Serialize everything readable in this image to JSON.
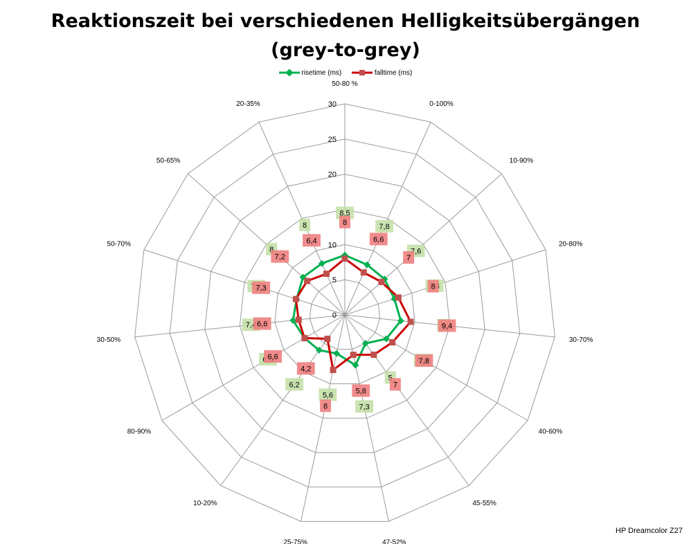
{
  "chart_data": {
    "type": "radar",
    "title_lines": [
      "Reaktionszeit bei verschiedenen Helligkeitsübergängen",
      "(grey-to-grey)"
    ],
    "categories": [
      "50-80 %",
      "0-100%",
      "10-90%",
      "20-80%",
      "30-70%",
      "40-60%",
      "45-55%",
      "47-52%",
      "25-75%",
      "10-20%",
      "80-90%",
      "30-50%",
      "50-70%",
      "50-65%",
      "20-35%"
    ],
    "rlim": [
      0,
      30
    ],
    "ticks": [
      "0",
      "5",
      "10",
      "20",
      "25",
      "30"
    ],
    "tick_values": [
      0,
      5,
      10,
      20,
      25,
      30
    ],
    "grid": true,
    "legend_position": "top",
    "series": [
      {
        "name": "risetime (ms)",
        "color": "#00b050",
        "label_bg": "#c4e0a8",
        "values": [
          8.5,
          7.8,
          7.6,
          7.4,
          8,
          6.8,
          5,
          7.3,
          5.6,
          6.2,
          6.6,
          7.4,
          7.2,
          8,
          8
        ],
        "labels": [
          "8,5",
          "7,8",
          "7,6",
          "7,4",
          "8",
          "6,8",
          "5",
          "7,3",
          "5,6",
          "6,2",
          "6,6",
          "7,4",
          "7,2",
          "8",
          "8"
        ]
      },
      {
        "name": "falltime (ms)",
        "color": "#cc0000",
        "label_bg": "#f08080",
        "values": [
          8,
          6.6,
          7,
          8,
          9.4,
          7.8,
          7,
          5.8,
          8,
          4.2,
          6.6,
          6.6,
          7.3,
          7.2,
          6.4
        ],
        "labels": [
          "8",
          "6,6",
          "7",
          "8",
          "9,4",
          "7,8",
          "7",
          "5,8",
          "8",
          "4,2",
          "6,6",
          "6,6",
          "7,3",
          "7,2",
          "6,4"
        ]
      }
    ]
  },
  "watermark": "HP Dreamcolor Z27"
}
